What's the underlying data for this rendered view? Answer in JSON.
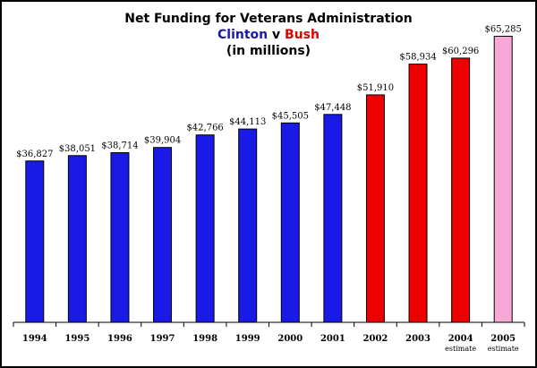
{
  "title": {
    "line1": "Net Funding for Veterans Administration",
    "clinton": "Clinton",
    "versus": "v",
    "bush": "Bush",
    "line3": "(in millions)"
  },
  "colors": {
    "clinton": "#1a1ae6",
    "bush": "#ee0000",
    "estimate_2005": "#f7a8d6",
    "clinton_text": "#1a1aa8",
    "bush_text": "#dd0000"
  },
  "chart_data": {
    "type": "bar",
    "title": "Net Funding for Veterans Administration",
    "subtitle": "Clinton v Bush (in millions)",
    "categories": [
      "1994",
      "1995",
      "1996",
      "1997",
      "1998",
      "1999",
      "2000",
      "2001",
      "2002",
      "2003",
      "2004",
      "2005"
    ],
    "category_notes": [
      "",
      "",
      "",
      "",
      "",
      "",
      "",
      "",
      "",
      "",
      "estimate",
      "estimate"
    ],
    "values": [
      36827,
      38051,
      38714,
      39904,
      42766,
      44113,
      45505,
      47448,
      51910,
      58934,
      60296,
      65285
    ],
    "value_labels": [
      "$36,827",
      "$38,051",
      "$38,714",
      "$39,904",
      "$42,766",
      "$44,113",
      "$45,505",
      "$47,448",
      "$51,910",
      "$58,934",
      "$60,296",
      "$65,285"
    ],
    "bar_colors": [
      "#1a1ae6",
      "#1a1ae6",
      "#1a1ae6",
      "#1a1ae6",
      "#1a1ae6",
      "#1a1ae6",
      "#1a1ae6",
      "#1a1ae6",
      "#ee0000",
      "#ee0000",
      "#ee0000",
      "#f7a8d6"
    ],
    "ylim": [
      0,
      66000
    ],
    "grid": false,
    "legend": "none"
  }
}
